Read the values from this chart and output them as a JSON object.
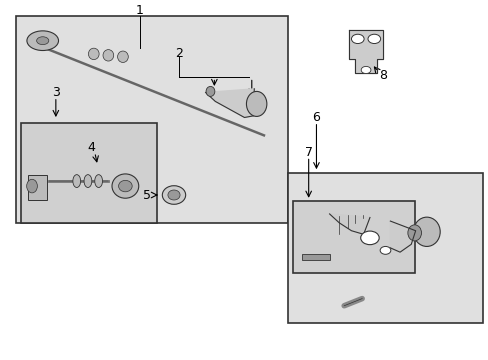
{
  "bg_color": "#ffffff",
  "diagram_bg": "#e0e0e0",
  "inner_bg": "#d0d0d0",
  "lc": "#333333",
  "lw": 1.2,
  "fs": 9,
  "parts_color": "#bbbbbb",
  "parts_dark": "#999999",
  "parts_light": "#cccccc"
}
